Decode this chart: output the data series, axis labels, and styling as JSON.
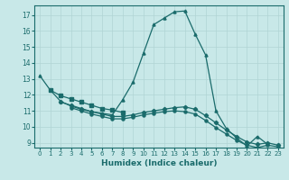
{
  "xlabel": "Humidex (Indice chaleur)",
  "background_color": "#c8e8e8",
  "grid_color": "#b0d4d4",
  "line_color": "#1a6b6b",
  "xlim": [
    -0.5,
    23.5
  ],
  "ylim": [
    8.7,
    17.6
  ],
  "xticks": [
    0,
    1,
    2,
    3,
    4,
    5,
    6,
    7,
    8,
    9,
    10,
    11,
    12,
    13,
    14,
    15,
    16,
    17,
    18,
    19,
    20,
    21,
    22,
    23
  ],
  "yticks": [
    9,
    10,
    11,
    12,
    13,
    14,
    15,
    16,
    17
  ],
  "line1": {
    "x": [
      0,
      1,
      2,
      3,
      4,
      5,
      6,
      7,
      8,
      9,
      10,
      11,
      12,
      13,
      14,
      15,
      16,
      17,
      18,
      19,
      20,
      21,
      22,
      23
    ],
    "y": [
      13.2,
      12.3,
      11.6,
      11.3,
      11.1,
      10.95,
      10.85,
      10.75,
      11.7,
      12.8,
      14.6,
      16.4,
      16.8,
      17.2,
      17.25,
      15.8,
      14.5,
      11.0,
      9.9,
      9.3,
      8.8,
      9.4,
      8.9,
      null
    ],
    "marker": "^"
  },
  "line2": {
    "x": [
      1,
      2,
      3,
      4,
      5,
      6,
      7,
      8,
      9,
      10,
      11,
      12,
      13,
      14,
      15,
      16,
      17,
      18,
      19,
      20,
      21,
      22,
      23
    ],
    "y": [
      12.3,
      11.95,
      11.75,
      11.55,
      11.35,
      11.15,
      11.05,
      10.9,
      null,
      null,
      null,
      null,
      null,
      null,
      null,
      null,
      null,
      null,
      null,
      null,
      null,
      null,
      null
    ],
    "marker": "s"
  },
  "line3": {
    "x": [
      2,
      3,
      4,
      5,
      6,
      7,
      8,
      9,
      10,
      11,
      12,
      13,
      14,
      15,
      16,
      17,
      18,
      19,
      20,
      21,
      22,
      23
    ],
    "y": [
      11.55,
      11.35,
      11.15,
      10.95,
      10.8,
      10.65,
      10.65,
      10.75,
      10.9,
      11.0,
      11.1,
      11.2,
      11.25,
      11.1,
      10.7,
      10.25,
      9.8,
      9.4,
      9.05,
      8.9,
      9.0,
      8.85
    ],
    "marker": "D"
  },
  "line4": {
    "x": [
      3,
      4,
      5,
      6,
      7,
      8,
      9,
      10,
      11,
      12,
      13,
      14,
      15,
      16,
      17,
      18,
      19,
      20,
      21,
      22,
      23
    ],
    "y": [
      11.2,
      11.0,
      10.8,
      10.65,
      10.5,
      10.5,
      10.6,
      10.75,
      10.85,
      10.95,
      11.0,
      10.95,
      10.8,
      10.4,
      9.95,
      9.55,
      9.15,
      8.85,
      8.7,
      8.85,
      8.75
    ],
    "marker": "o"
  }
}
